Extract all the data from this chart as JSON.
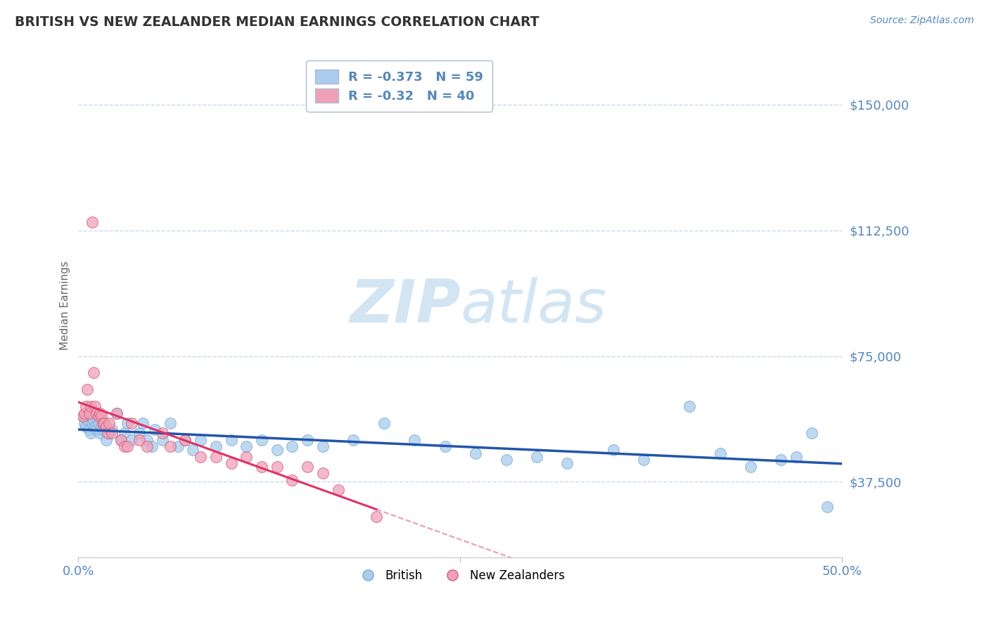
{
  "title": "BRITISH VS NEW ZEALANDER MEDIAN EARNINGS CORRELATION CHART",
  "source": "Source: ZipAtlas.com",
  "ylabel": "Median Earnings",
  "xmin": 0.0,
  "xmax": 0.5,
  "ymin": 15000,
  "ymax": 165000,
  "yticks": [
    37500,
    75000,
    112500,
    150000
  ],
  "ytick_labels": [
    "$37,500",
    "$75,000",
    "$112,500",
    "$150,000"
  ],
  "british_R": -0.373,
  "british_N": 59,
  "nz_R": -0.32,
  "nz_N": 40,
  "british_color": "#aaccee",
  "british_edge": "#7aaacf",
  "nz_color": "#f0a0b8",
  "nz_edge": "#d06080",
  "british_line_color": "#2255aa",
  "nz_line_color": "#dd3366",
  "background_color": "#ffffff",
  "grid_color": "#c8daea",
  "title_color": "#333333",
  "axis_color": "#5588bb",
  "watermark_color": "#c8dff0",
  "british_x": [
    0.003,
    0.004,
    0.005,
    0.006,
    0.007,
    0.008,
    0.009,
    0.01,
    0.011,
    0.012,
    0.013,
    0.014,
    0.015,
    0.016,
    0.017,
    0.018,
    0.02,
    0.022,
    0.025,
    0.028,
    0.03,
    0.032,
    0.035,
    0.04,
    0.042,
    0.045,
    0.048,
    0.05,
    0.055,
    0.06,
    0.065,
    0.07,
    0.075,
    0.08,
    0.09,
    0.1,
    0.11,
    0.12,
    0.13,
    0.14,
    0.15,
    0.16,
    0.18,
    0.2,
    0.22,
    0.24,
    0.26,
    0.28,
    0.3,
    0.32,
    0.35,
    0.37,
    0.4,
    0.42,
    0.44,
    0.46,
    0.47,
    0.48,
    0.49
  ],
  "british_y": [
    57000,
    55000,
    54000,
    56000,
    53000,
    52000,
    55000,
    56000,
    54000,
    53000,
    55000,
    52000,
    54000,
    53000,
    55000,
    50000,
    52000,
    53000,
    58000,
    50000,
    52000,
    55000,
    50000,
    52000,
    55000,
    50000,
    48000,
    53000,
    50000,
    55000,
    48000,
    50000,
    47000,
    50000,
    48000,
    50000,
    48000,
    50000,
    47000,
    48000,
    50000,
    48000,
    50000,
    55000,
    50000,
    48000,
    46000,
    44000,
    45000,
    43000,
    47000,
    44000,
    60000,
    46000,
    42000,
    44000,
    45000,
    52000,
    30000
  ],
  "nz_x": [
    0.003,
    0.004,
    0.005,
    0.006,
    0.007,
    0.008,
    0.009,
    0.01,
    0.011,
    0.012,
    0.013,
    0.014,
    0.015,
    0.016,
    0.017,
    0.018,
    0.019,
    0.02,
    0.022,
    0.025,
    0.028,
    0.03,
    0.032,
    0.035,
    0.04,
    0.045,
    0.055,
    0.06,
    0.07,
    0.08,
    0.09,
    0.1,
    0.11,
    0.12,
    0.13,
    0.14,
    0.15,
    0.16,
    0.17,
    0.195
  ],
  "nz_y": [
    57000,
    58000,
    60000,
    65000,
    58000,
    60000,
    115000,
    70000,
    60000,
    58000,
    57000,
    58000,
    57000,
    55000,
    55000,
    54000,
    52000,
    55000,
    52000,
    58000,
    50000,
    48000,
    48000,
    55000,
    50000,
    48000,
    52000,
    48000,
    50000,
    45000,
    45000,
    43000,
    45000,
    42000,
    42000,
    38000,
    42000,
    40000,
    35000,
    27000
  ],
  "nz_line_xmax": 0.195,
  "nz_line_xmax_extended": 0.5
}
